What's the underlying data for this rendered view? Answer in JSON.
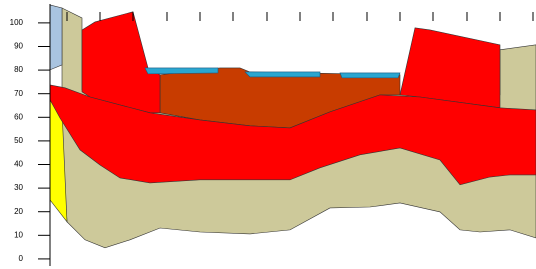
{
  "chart_data": {
    "type": "cross-section",
    "xlim": [
      0,
      486
    ],
    "ylim": [
      -3,
      108
    ],
    "xticks": [
      17,
      50,
      83,
      117,
      150,
      183,
      217,
      250,
      283,
      317,
      350,
      383,
      417,
      450,
      483
    ],
    "yticks": [
      0,
      10,
      20,
      30,
      40,
      50,
      60,
      70,
      80,
      90,
      100
    ],
    "series": [
      {
        "color": "#cdc99a",
        "x": [
          12,
          32,
          32,
          450,
          450,
          486,
          486,
          460,
          430,
          410,
          390,
          350,
          320,
          280,
          240,
          200,
          150,
          110,
          80,
          55,
          35,
          17,
          12
        ],
        "values": [
          106.3,
          102.1,
          71.6,
          69.5,
          88.6,
          90.7,
          8.9,
          12.3,
          11.4,
          12.3,
          19.9,
          23.7,
          22.0,
          21.6,
          12.3,
          10.6,
          11.4,
          13.1,
          8.1,
          4.7,
          8.1,
          15.7,
          50.4
        ]
      },
      {
        "color": "#a9c4e0",
        "x": [
          0,
          12,
          12,
          0
        ],
        "values": [
          107.6,
          106.3,
          82.2,
          80.1
        ]
      },
      {
        "color": "#ffff00",
        "x": [
          0,
          12,
          17,
          0
        ],
        "values": [
          67.4,
          63.1,
          15.7,
          25.0
        ]
      },
      {
        "color": "#c83c00",
        "x": [
          110,
          170,
          190,
          200,
          350,
          350,
          330,
          280,
          240,
          200,
          150,
          110
        ],
        "values": [
          78.0,
          80.9,
          80.9,
          79.2,
          78.0,
          69.5,
          69.5,
          62.3,
          55.5,
          56.4,
          58.9,
          61.9
        ]
      },
      {
        "color": "#ff0000",
        "x": [
          32,
          45,
          83,
          98,
          110,
          110,
          100,
          40,
          32
        ],
        "values": [
          97.0,
          100.4,
          104.7,
          80.9,
          78.0,
          61.9,
          61.9,
          68.6,
          70.8
        ]
      },
      {
        "color": "#ff0000",
        "x": [
          350,
          365,
          380,
          450,
          450,
          370
        ],
        "values": [
          69.5,
          97.9,
          97.0,
          90.7,
          64.0,
          68.6
        ]
      },
      {
        "color": "#ff0000",
        "x": [
          0,
          15,
          40,
          100,
          150,
          200,
          240,
          280,
          330,
          370,
          450,
          486,
          486,
          460,
          440,
          410,
          390,
          350,
          310,
          270,
          240,
          200,
          150,
          100,
          70,
          50,
          30,
          10,
          0
        ],
        "values": [
          73.7,
          72.5,
          68.6,
          61.9,
          58.9,
          56.4,
          55.5,
          62.3,
          69.5,
          68.6,
          64.0,
          63.1,
          35.6,
          35.6,
          34.7,
          31.4,
          41.9,
          47.0,
          44.1,
          38.6,
          33.5,
          33.5,
          33.5,
          32.2,
          34.3,
          39.8,
          46.2,
          59.7,
          67.4
        ]
      },
      {
        "color": "#2aa6d0",
        "x": [
          95,
          168,
          168,
          98
        ],
        "values": [
          80.9,
          80.9,
          78.8,
          78.4
        ]
      },
      {
        "color": "#2aa6d0",
        "x": [
          195,
          270,
          270,
          200
        ],
        "values": [
          79.2,
          79.2,
          77.1,
          77.1
        ]
      },
      {
        "color": "#2aa6d0",
        "x": [
          290,
          350,
          348,
          292
        ],
        "values": [
          78.8,
          78.8,
          76.7,
          76.7
        ]
      }
    ]
  }
}
